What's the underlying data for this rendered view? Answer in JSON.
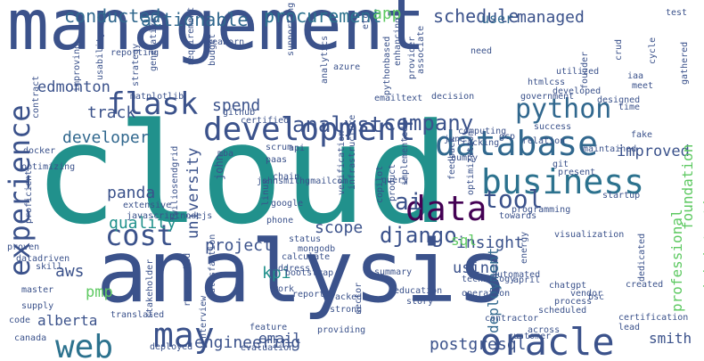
{
  "words": [
    {
      "text": "management",
      "color": "#3b528b"
    },
    {
      "text": "cloud",
      "color": "#21918c"
    },
    {
      "text": "analysis",
      "color": "#3b528b"
    },
    {
      "text": "data",
      "color": "#440154"
    },
    {
      "text": "development",
      "color": "#3b528b"
    },
    {
      "text": "database",
      "color": "#31688e"
    },
    {
      "text": "business",
      "color": "#2c728e"
    },
    {
      "text": "python",
      "color": "#31688e"
    },
    {
      "text": "experience",
      "color": "#3b528b"
    },
    {
      "text": "flask",
      "color": "#3b528b"
    },
    {
      "text": "web",
      "color": "#2c728e"
    },
    {
      "text": "may",
      "color": "#3b528b"
    },
    {
      "text": "oracle",
      "color": "#3b528b"
    },
    {
      "text": "cost",
      "color": "#3b528b"
    },
    {
      "text": "tool",
      "color": "#3b528b"
    },
    {
      "text": "ai",
      "color": "#3b528b"
    },
    {
      "text": "analyst",
      "color": "#3b528b"
    },
    {
      "text": "company",
      "color": "#3b528b"
    },
    {
      "text": "procurement",
      "color": "#2c728e"
    },
    {
      "text": "conducted",
      "color": "#31688e"
    },
    {
      "text": "actionable",
      "color": "#31688e"
    },
    {
      "text": "app",
      "color": "#5ec962"
    },
    {
      "text": "schedule",
      "color": "#3b528b"
    },
    {
      "text": "managed",
      "color": "#3b528b"
    },
    {
      "text": "user",
      "color": "#31688e"
    },
    {
      "text": "panda",
      "color": "#3b528b"
    },
    {
      "text": "quality",
      "color": "#21918c"
    },
    {
      "text": "developer",
      "color": "#31688e"
    },
    {
      "text": "track",
      "color": "#3b528b"
    },
    {
      "text": "spend",
      "color": "#3b528b"
    },
    {
      "text": "edmonton",
      "color": "#3b528b"
    },
    {
      "text": "university",
      "color": "#3b528b"
    },
    {
      "text": "project",
      "color": "#3b528b"
    },
    {
      "text": "insight",
      "color": "#3b528b"
    },
    {
      "text": "scope",
      "color": "#3b528b"
    },
    {
      "text": "django",
      "color": "#3b528b"
    },
    {
      "text": "using",
      "color": "#3b528b"
    },
    {
      "text": "sql",
      "color": "#5ec962"
    },
    {
      "text": "improved",
      "color": "#3b528b"
    },
    {
      "text": "administration",
      "color": "#5ec962"
    },
    {
      "text": "foundation",
      "color": "#5ec962"
    },
    {
      "text": "professional",
      "color": "#5ec962"
    },
    {
      "text": "deployment",
      "color": "#31688e"
    },
    {
      "text": "engineering",
      "color": "#3b528b"
    },
    {
      "text": "postgresql",
      "color": "#3b528b"
    },
    {
      "text": "aws",
      "color": "#3b528b"
    },
    {
      "text": "pmp",
      "color": "#5ec962"
    },
    {
      "text": "kpi",
      "color": "#21918c"
    },
    {
      "text": "alberta",
      "color": "#3b528b"
    },
    {
      "text": "email",
      "color": "#3b528b"
    },
    {
      "text": "smith",
      "color": "#3b528b"
    },
    {
      "text": "john",
      "color": "#3b528b"
    },
    {
      "text": "etc",
      "color": "#3b528b"
    },
    {
      "text": "test",
      "color": "#3b528b"
    },
    {
      "text": "crud",
      "color": "#3b528b"
    },
    {
      "text": "cycle",
      "color": "#3b528b"
    },
    {
      "text": "founder",
      "color": "#3b528b"
    },
    {
      "text": "gathered",
      "color": "#3b528b"
    },
    {
      "text": "meet",
      "color": "#3b528b"
    },
    {
      "text": "iaa",
      "color": "#3b528b"
    },
    {
      "text": "utilized",
      "color": "#3b528b"
    },
    {
      "text": "htmlcss",
      "color": "#3b528b"
    },
    {
      "text": "need",
      "color": "#3b528b"
    },
    {
      "text": "associate",
      "color": "#3b528b"
    },
    {
      "text": "provider",
      "color": "#3b528b"
    },
    {
      "text": "emailtext",
      "color": "#3b528b"
    },
    {
      "text": "azure",
      "color": "#3b528b"
    },
    {
      "text": "enhancing",
      "color": "#3b528b"
    },
    {
      "text": "pythonbased",
      "color": "#3b528b"
    },
    {
      "text": "analytics",
      "color": "#3b528b"
    },
    {
      "text": "supporting",
      "color": "#3b528b"
    },
    {
      "text": "seaborn",
      "color": "#3b528b"
    },
    {
      "text": "budget",
      "color": "#3b528b"
    },
    {
      "text": "requirement",
      "color": "#3b528b"
    },
    {
      "text": "reporting",
      "color": "#3b528b"
    },
    {
      "text": "generative",
      "color": "#3b528b"
    },
    {
      "text": "strategy",
      "color": "#3b528b"
    },
    {
      "text": "usability",
      "color": "#3b528b"
    },
    {
      "text": "improving",
      "color": "#3b528b"
    },
    {
      "text": "matplotlib",
      "color": "#3b528b"
    },
    {
      "text": "contract",
      "color": "#3b528b"
    },
    {
      "text": "github",
      "color": "#3b528b"
    },
    {
      "text": "certified",
      "color": "#3b528b"
    },
    {
      "text": "docker",
      "color": "#3b528b"
    },
    {
      "text": "optimizing",
      "color": "#3b528b"
    },
    {
      "text": "mba",
      "color": "#3b528b"
    },
    {
      "text": "api",
      "color": "#3b528b"
    },
    {
      "text": "paas",
      "color": "#3b528b"
    },
    {
      "text": "scrum",
      "color": "#3b528b"
    },
    {
      "text": "chain",
      "color": "#3b528b"
    },
    {
      "text": "linux",
      "color": "#3b528b"
    },
    {
      "text": "google",
      "color": "#3b528b"
    },
    {
      "text": "phone",
      "color": "#3b528b"
    },
    {
      "text": "extensive",
      "color": "#3b528b"
    },
    {
      "text": "javascriptnodejs",
      "color": "#3b528b"
    },
    {
      "text": "twiliosendgrid",
      "color": "#3b528b"
    },
    {
      "text": "proficient",
      "color": "#3b528b"
    },
    {
      "text": "proven",
      "color": "#3b528b"
    },
    {
      "text": "datadriven",
      "color": "#3b528b"
    },
    {
      "text": "skill",
      "color": "#3b528b"
    },
    {
      "text": "master",
      "color": "#3b528b"
    },
    {
      "text": "supply",
      "color": "#3b528b"
    },
    {
      "text": "code",
      "color": "#3b528b"
    },
    {
      "text": "canada",
      "color": "#3b528b"
    },
    {
      "text": "translated",
      "color": "#3b528b"
    },
    {
      "text": "stakeholder",
      "color": "#3b528b"
    },
    {
      "text": "researched",
      "color": "#3b528b"
    },
    {
      "text": "johnsmithgmailcom",
      "color": "#3b528b"
    },
    {
      "text": "verification",
      "color": "#3b528b"
    },
    {
      "text": "infrastructure",
      "color": "#3b528b"
    },
    {
      "text": "query",
      "color": "#3b528b"
    },
    {
      "text": "copilot",
      "color": "#3b528b"
    },
    {
      "text": "product",
      "color": "#3b528b"
    },
    {
      "text": "implemented",
      "color": "#3b528b"
    },
    {
      "text": "feedback",
      "color": "#3b528b"
    },
    {
      "text": "numpy",
      "color": "#3b528b"
    },
    {
      "text": "optimization",
      "color": "#3b528b"
    },
    {
      "text": "computing",
      "color": "#3b528b"
    },
    {
      "text": "tracking",
      "color": "#3b528b"
    },
    {
      "text": "june",
      "color": "#3b528b"
    },
    {
      "text": "relation",
      "color": "#3b528b"
    },
    {
      "text": "gcp",
      "color": "#3b528b"
    },
    {
      "text": "success",
      "color": "#3b528b"
    },
    {
      "text": "decision",
      "color": "#3b528b"
    },
    {
      "text": "government",
      "color": "#3b528b"
    },
    {
      "text": "developed",
      "color": "#3b528b"
    },
    {
      "text": "designed",
      "color": "#3b528b"
    },
    {
      "text": "time",
      "color": "#3b528b"
    },
    {
      "text": "fake",
      "color": "#3b528b"
    },
    {
      "text": "git",
      "color": "#3b528b"
    },
    {
      "text": "present",
      "color": "#3b528b"
    },
    {
      "text": "maintained",
      "color": "#3b528b"
    },
    {
      "text": "startup",
      "color": "#3b528b"
    },
    {
      "text": "programming",
      "color": "#3b528b"
    },
    {
      "text": "towards",
      "color": "#3b528b"
    },
    {
      "text": "visualization",
      "color": "#3b528b"
    },
    {
      "text": "status",
      "color": "#3b528b"
    },
    {
      "text": "mongodb",
      "color": "#3b528b"
    },
    {
      "text": "calculate",
      "color": "#3b528b"
    },
    {
      "text": "address",
      "color": "#3b528b"
    },
    {
      "text": "bootstrap",
      "color": "#3b528b"
    },
    {
      "text": "work",
      "color": "#3b528b"
    },
    {
      "text": "report",
      "color": "#3b528b"
    },
    {
      "text": "tracked",
      "color": "#3b528b"
    },
    {
      "text": "strong",
      "color": "#3b528b"
    },
    {
      "text": "education",
      "color": "#3b528b"
    },
    {
      "text": "story",
      "color": "#3b528b"
    },
    {
      "text": "summary",
      "color": "#3b528b"
    },
    {
      "text": "technology",
      "color": "#3b528b"
    },
    {
      "text": "automated",
      "color": "#3b528b"
    },
    {
      "text": "operation",
      "color": "#3b528b"
    },
    {
      "text": "april",
      "color": "#3b528b"
    },
    {
      "text": "energy",
      "color": "#3b528b"
    },
    {
      "text": "chatgpt",
      "color": "#3b528b"
    },
    {
      "text": "created",
      "color": "#3b528b"
    },
    {
      "text": "vendor",
      "color": "#3b528b"
    },
    {
      "text": "scheduled",
      "color": "#3b528b"
    },
    {
      "text": "process",
      "color": "#3b528b"
    },
    {
      "text": "bsc",
      "color": "#3b528b"
    },
    {
      "text": "dedicated",
      "color": "#3b528b"
    },
    {
      "text": "certification",
      "color": "#3b528b"
    },
    {
      "text": "lead",
      "color": "#3b528b"
    },
    {
      "text": "across",
      "color": "#3b528b"
    },
    {
      "text": "customer",
      "color": "#3b528b"
    },
    {
      "text": "contractor",
      "color": "#3b528b"
    },
    {
      "text": "sector",
      "color": "#3b528b"
    },
    {
      "text": "providing",
      "color": "#3b528b"
    },
    {
      "text": "feature",
      "color": "#3b528b"
    },
    {
      "text": "interview",
      "color": "#3b528b"
    },
    {
      "text": "satisfaction",
      "color": "#3b528b"
    },
    {
      "text": "deployed",
      "color": "#3b528b"
    },
    {
      "text": "evaluation",
      "color": "#3b528b"
    },
    {
      "text": "efficiency",
      "color": "#3b528b"
    },
    {
      "text": "st",
      "color": "#3b528b"
    },
    {
      "text": "v",
      "color": "#3b528b"
    }
  ]
}
